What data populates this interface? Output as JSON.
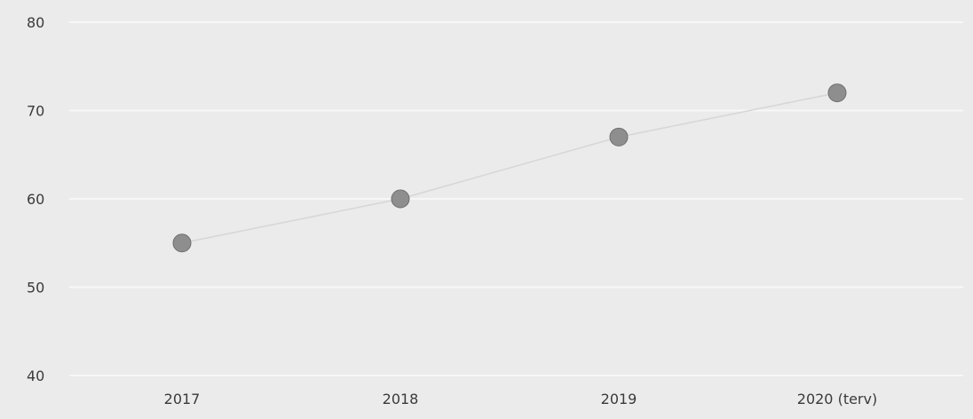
{
  "chart_data": {
    "type": "line",
    "categories": [
      "2017",
      "2018",
      "2019",
      "2020 (terv)"
    ],
    "series": [
      {
        "values": [
          55,
          60,
          67,
          72
        ]
      }
    ],
    "y_ticks": [
      40,
      50,
      60,
      70,
      80
    ],
    "ylim": [
      40,
      80
    ],
    "grid": true,
    "legend": "none",
    "colors": {
      "background": "#ebebeb",
      "gridline": "#f7f7f7",
      "marker": "#8e8e8e",
      "line": "#d6d6d6"
    }
  }
}
